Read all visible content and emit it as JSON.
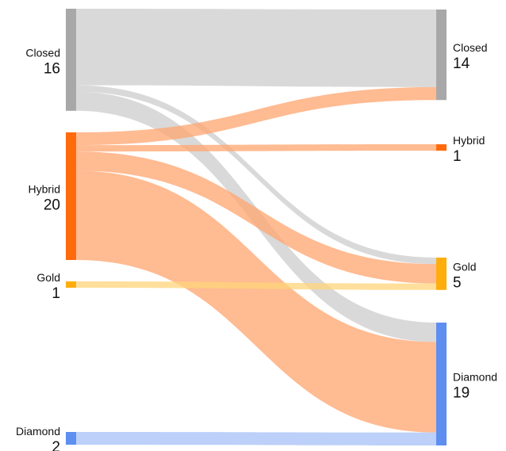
{
  "chart_data": {
    "type": "sankey",
    "title": "",
    "left_nodes": [
      {
        "id": "L_closed",
        "name": "Closed",
        "value": 16,
        "color": "#a8a8a8"
      },
      {
        "id": "L_hybrid",
        "name": "Hybrid",
        "value": 20,
        "color": "#ff6a0d"
      },
      {
        "id": "L_gold",
        "name": "Gold",
        "value": 1,
        "color": "#ffae0d"
      },
      {
        "id": "L_diamond",
        "name": "Diamond",
        "value": 2,
        "color": "#5d8ef0"
      }
    ],
    "right_nodes": [
      {
        "id": "R_closed",
        "name": "Closed",
        "value": 14,
        "color": "#a8a8a8"
      },
      {
        "id": "R_hybrid",
        "name": "Hybrid",
        "value": 1,
        "color": "#ff6a0d"
      },
      {
        "id": "R_gold",
        "name": "Gold",
        "value": 5,
        "color": "#ffae0d"
      },
      {
        "id": "R_diamond",
        "name": "Diamond",
        "value": 19,
        "color": "#5d8ef0"
      }
    ],
    "links": [
      {
        "source": "L_closed",
        "target": "R_closed",
        "value": 12
      },
      {
        "source": "L_closed",
        "target": "R_gold",
        "value": 1
      },
      {
        "source": "L_closed",
        "target": "R_diamond",
        "value": 3
      },
      {
        "source": "L_hybrid",
        "target": "R_closed",
        "value": 2
      },
      {
        "source": "L_hybrid",
        "target": "R_hybrid",
        "value": 1
      },
      {
        "source": "L_hybrid",
        "target": "R_gold",
        "value": 3
      },
      {
        "source": "L_hybrid",
        "target": "R_diamond",
        "value": 14
      },
      {
        "source": "L_gold",
        "target": "R_gold",
        "value": 1
      },
      {
        "source": "L_diamond",
        "target": "R_diamond",
        "value": 2
      }
    ],
    "link_colors": {
      "L_closed": "#cccccc",
      "L_hybrid": "#ffa46e",
      "L_gold": "#ffd47a",
      "L_diamond": "#a6c0f7"
    }
  }
}
